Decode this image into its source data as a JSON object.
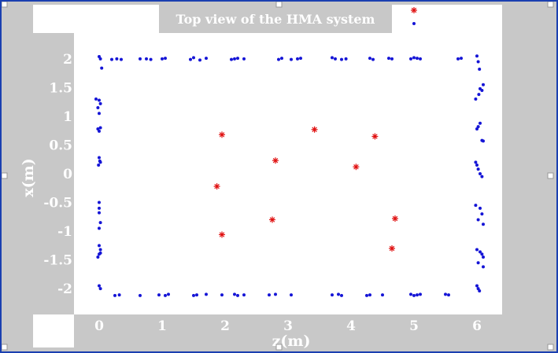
{
  "chart_data": {
    "type": "scatter",
    "title": "Top view of the HMA system",
    "xlabel": "z(m)",
    "ylabel": "x(m)",
    "xlim": [
      -0.4,
      6.4
    ],
    "ylim": [
      -2.45,
      2.45
    ],
    "xticks": [
      "0",
      "1",
      "2",
      "3",
      "4",
      "5",
      "6"
    ],
    "yticks": [
      "2",
      "1.5",
      "1",
      "0.5",
      "0",
      "-0.5",
      "-1",
      "-1.5",
      "-2"
    ],
    "grid": false,
    "legend": "top-right",
    "colors": {
      "blue": "#1515d6",
      "red": "#e01010",
      "plot_bg": "#ffffff",
      "frame_bg": "#c8c8c8"
    },
    "series": [
      {
        "color": "#1515d6",
        "marker": "dot",
        "points": [
          [
            0.0,
            2.04
          ],
          [
            0.02,
            2.0
          ],
          [
            0.04,
            1.84
          ],
          [
            0.2,
            1.99
          ],
          [
            0.28,
            2.0
          ],
          [
            0.35,
            1.99
          ],
          [
            0.65,
            2.0
          ],
          [
            0.75,
            2.0
          ],
          [
            0.82,
            1.99
          ],
          [
            1.0,
            2.0
          ],
          [
            1.05,
            2.01
          ],
          [
            1.45,
            1.99
          ],
          [
            1.5,
            2.02
          ],
          [
            1.6,
            1.98
          ],
          [
            1.7,
            2.01
          ],
          [
            2.1,
            1.99
          ],
          [
            2.15,
            2.0
          ],
          [
            2.2,
            2.01
          ],
          [
            2.3,
            2.0
          ],
          [
            2.85,
            1.99
          ],
          [
            2.9,
            2.01
          ],
          [
            3.05,
            1.99
          ],
          [
            3.15,
            2.0
          ],
          [
            3.2,
            2.01
          ],
          [
            3.7,
            2.02
          ],
          [
            3.75,
            2.0
          ],
          [
            3.85,
            1.99
          ],
          [
            3.92,
            2.0
          ],
          [
            4.3,
            2.01
          ],
          [
            4.35,
            1.99
          ],
          [
            4.6,
            2.01
          ],
          [
            4.65,
            2.0
          ],
          [
            4.95,
            2.0
          ],
          [
            5.0,
            2.02
          ],
          [
            5.05,
            2.01
          ],
          [
            5.1,
            2.0
          ],
          [
            5.7,
            2.0
          ],
          [
            5.75,
            2.01
          ],
          [
            6.0,
            2.05
          ],
          [
            6.02,
            1.95
          ],
          [
            6.04,
            1.82
          ],
          [
            5.98,
            1.3
          ],
          [
            6.03,
            1.38
          ],
          [
            6.08,
            1.45
          ],
          [
            6.1,
            1.55
          ],
          [
            6.05,
            1.48
          ],
          [
            6.0,
            0.78
          ],
          [
            6.05,
            0.88
          ],
          [
            6.02,
            0.82
          ],
          [
            6.08,
            0.58
          ],
          [
            6.1,
            0.57
          ],
          [
            5.98,
            0.2
          ],
          [
            6.02,
            0.08
          ],
          [
            6.05,
            0.0
          ],
          [
            6.08,
            -0.05
          ],
          [
            6.0,
            0.15
          ],
          [
            5.98,
            -0.55
          ],
          [
            6.05,
            -0.6
          ],
          [
            6.08,
            -0.7
          ],
          [
            6.02,
            -0.8
          ],
          [
            6.1,
            -0.88
          ],
          [
            6.0,
            -1.32
          ],
          [
            6.05,
            -1.36
          ],
          [
            6.08,
            -1.4
          ],
          [
            6.1,
            -1.45
          ],
          [
            6.02,
            -1.55
          ],
          [
            6.1,
            -1.62
          ],
          [
            6.0,
            -1.95
          ],
          [
            6.02,
            -2.0
          ],
          [
            6.04,
            -2.04
          ],
          [
            -0.05,
            1.3
          ],
          [
            0.0,
            1.28
          ],
          [
            0.02,
            1.22
          ],
          [
            -0.02,
            1.15
          ],
          [
            0.0,
            1.05
          ],
          [
            -0.02,
            0.78
          ],
          [
            0.0,
            0.74
          ],
          [
            0.02,
            0.8
          ],
          [
            0.0,
            0.28
          ],
          [
            0.02,
            0.2
          ],
          [
            -0.01,
            0.15
          ],
          [
            0.01,
            0.22
          ],
          [
            0.0,
            -0.5
          ],
          [
            0.0,
            -0.6
          ],
          [
            0.0,
            -0.68
          ],
          [
            0.02,
            -0.85
          ],
          [
            0.0,
            -0.95
          ],
          [
            0.0,
            -1.25
          ],
          [
            0.02,
            -1.32
          ],
          [
            0.0,
            -1.4
          ],
          [
            -0.02,
            -1.45
          ],
          [
            0.02,
            -1.38
          ],
          [
            0.0,
            -1.95
          ],
          [
            0.02,
            -2.0
          ],
          [
            0.25,
            -2.12
          ],
          [
            0.32,
            -2.11
          ],
          [
            0.65,
            -2.12
          ],
          [
            0.95,
            -2.11
          ],
          [
            1.05,
            -2.12
          ],
          [
            1.1,
            -2.1
          ],
          [
            1.5,
            -2.12
          ],
          [
            1.55,
            -2.11
          ],
          [
            1.7,
            -2.1
          ],
          [
            1.95,
            -2.11
          ],
          [
            2.15,
            -2.1
          ],
          [
            2.2,
            -2.12
          ],
          [
            2.3,
            -2.11
          ],
          [
            2.7,
            -2.11
          ],
          [
            2.8,
            -2.1
          ],
          [
            3.05,
            -2.11
          ],
          [
            3.7,
            -2.11
          ],
          [
            3.8,
            -2.1
          ],
          [
            3.85,
            -2.12
          ],
          [
            4.25,
            -2.12
          ],
          [
            4.3,
            -2.11
          ],
          [
            4.5,
            -2.11
          ],
          [
            4.95,
            -2.1
          ],
          [
            5.0,
            -2.12
          ],
          [
            5.05,
            -2.11
          ],
          [
            5.1,
            -2.1
          ],
          [
            5.5,
            -2.1
          ],
          [
            5.55,
            -2.11
          ]
        ]
      },
      {
        "color": "#e01010",
        "marker": "star",
        "points": [
          [
            1.95,
            0.68
          ],
          [
            2.8,
            0.23
          ],
          [
            3.42,
            0.77
          ],
          [
            4.38,
            0.65
          ],
          [
            4.08,
            0.12
          ],
          [
            1.87,
            -0.22
          ],
          [
            2.75,
            -0.8
          ],
          [
            4.7,
            -0.78
          ],
          [
            1.95,
            -1.06
          ],
          [
            4.65,
            -1.3
          ]
        ]
      }
    ]
  }
}
